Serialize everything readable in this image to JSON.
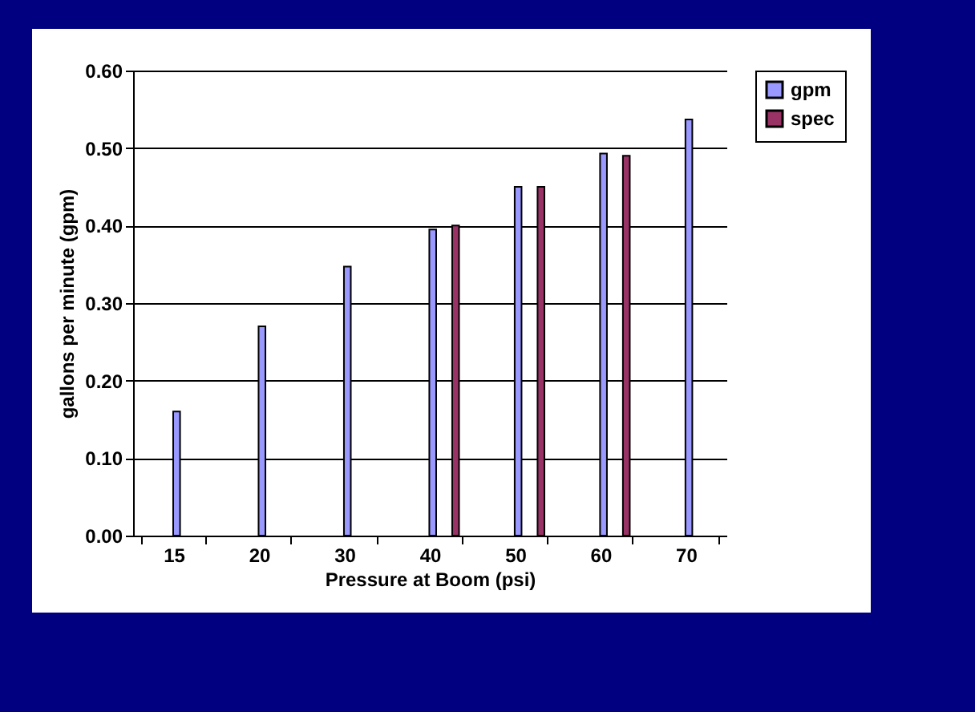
{
  "chart_data": {
    "type": "bar",
    "xlabel": "Pressure at Boom (psi)",
    "ylabel": "gallons per minute (gpm)",
    "categories": [
      "15",
      "20",
      "30",
      "40",
      "50",
      "60",
      "70"
    ],
    "series": [
      {
        "name": "gpm",
        "color": "#9999ff",
        "values": [
          0.16,
          0.27,
          0.347,
          0.395,
          0.45,
          0.493,
          0.537
        ]
      },
      {
        "name": "spec",
        "color": "#993366",
        "values": [
          null,
          null,
          null,
          0.4,
          0.45,
          0.49,
          null
        ]
      }
    ],
    "ylim": [
      0,
      0.6
    ],
    "yticks": [
      {
        "value": 0,
        "label": "0.00"
      },
      {
        "value": 0.1,
        "label": "0.10"
      },
      {
        "value": 0.2,
        "label": "0.20"
      },
      {
        "value": 0.3,
        "label": "0.30"
      },
      {
        "value": 0.4,
        "label": "0.40"
      },
      {
        "value": 0.5,
        "label": "0.50"
      },
      {
        "value": 0.6,
        "label": "0.60"
      }
    ],
    "grid": "y",
    "legend": "right"
  }
}
